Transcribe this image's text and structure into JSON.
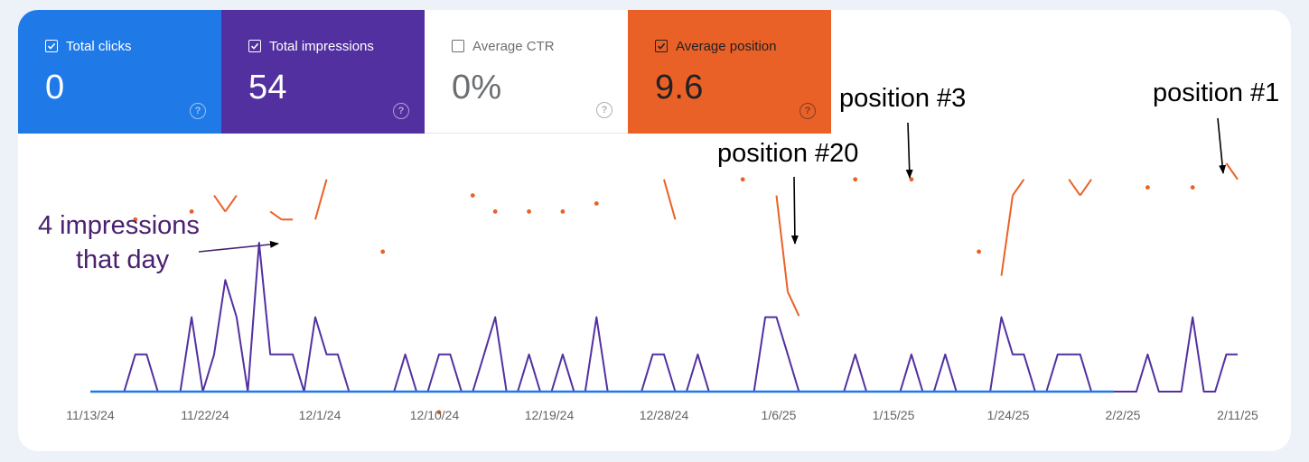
{
  "metrics": [
    {
      "label": "Total clicks",
      "value": "0",
      "checked": true,
      "bg": "#1f7ae8",
      "fg": "#ffffff"
    },
    {
      "label": "Total impressions",
      "value": "54",
      "checked": true,
      "bg": "#5330a0",
      "fg": "#ffffff"
    },
    {
      "label": "Average CTR",
      "value": "0%",
      "checked": false,
      "bg": "#ffffff",
      "fg": "#6b6e73"
    },
    {
      "label": "Average position",
      "value": "9.6",
      "checked": true,
      "bg": "#ea6127",
      "fg": "#202124"
    }
  ],
  "help_glyph": "?",
  "annotations": {
    "impressions": [
      "4 impressions",
      "that day"
    ],
    "pos20": "position #20",
    "pos3": "position #3",
    "pos1": "position #1"
  },
  "chart_data": {
    "type": "line",
    "x_tick_labels": [
      "11/13/24",
      "11/22/24",
      "12/1/24",
      "12/10/24",
      "12/19/24",
      "12/28/24",
      "1/6/25",
      "1/15/25",
      "1/24/25",
      "2/2/25",
      "2/11/25"
    ],
    "x_range": [
      "11/13/24",
      "2/11/25"
    ],
    "grid": false,
    "legend": "none",
    "series": [
      {
        "name": "Total clicks",
        "color": "#1f7ae8",
        "values": [
          0,
          0,
          0,
          0,
          0,
          0,
          0,
          0,
          0,
          0,
          0,
          0,
          0,
          0,
          0,
          0,
          0,
          0,
          0,
          0,
          0,
          0,
          0,
          0,
          0,
          0,
          0,
          0,
          0,
          0,
          0,
          0,
          0,
          0,
          0,
          0,
          0,
          0,
          0,
          0,
          0,
          0,
          0,
          0,
          0,
          0,
          0,
          0,
          0,
          0,
          0,
          0,
          0,
          0,
          0,
          0,
          0,
          0,
          0,
          0,
          0,
          0,
          0,
          0,
          0,
          0,
          0,
          0,
          0,
          0,
          0,
          0,
          0,
          0,
          0,
          0,
          0,
          0,
          0,
          0,
          0,
          0,
          0,
          0,
          0,
          0,
          0,
          0,
          0,
          0,
          0,
          0
        ]
      },
      {
        "name": "Total impressions",
        "color": "#5330a0",
        "values": [
          0,
          0,
          0,
          0,
          1,
          1,
          0,
          0,
          0,
          2,
          0,
          1,
          3,
          2,
          0,
          4,
          1,
          1,
          1,
          0,
          2,
          1,
          1,
          0,
          0,
          0,
          0,
          0,
          1,
          0,
          0,
          1,
          1,
          0,
          0,
          1,
          2,
          0,
          0,
          1,
          0,
          0,
          1,
          0,
          0,
          2,
          0,
          0,
          0,
          0,
          1,
          1,
          0,
          0,
          1,
          0,
          0,
          0,
          0,
          0,
          2,
          2,
          1,
          0,
          0,
          0,
          0,
          0,
          1,
          0,
          0,
          0,
          0,
          1,
          0,
          0,
          1,
          0,
          0,
          0,
          0,
          2,
          1,
          1,
          0,
          0,
          1,
          1,
          1,
          0,
          0,
          0,
          0,
          0,
          1,
          0,
          0,
          0,
          2,
          0,
          0,
          1,
          1
        ]
      },
      {
        "name": "Average position",
        "color": "#ea6127",
        "values": [
          null,
          null,
          null,
          null,
          8,
          null,
          null,
          null,
          null,
          7,
          null,
          5,
          7,
          5,
          null,
          null,
          7,
          8,
          8,
          null,
          8,
          3,
          null,
          null,
          null,
          null,
          12,
          null,
          null,
          null,
          null,
          32,
          null,
          null,
          5,
          null,
          7,
          null,
          null,
          7,
          null,
          null,
          7,
          null,
          null,
          6,
          null,
          null,
          null,
          null,
          null,
          3,
          8,
          null,
          null,
          null,
          null,
          null,
          3,
          null,
          null,
          5,
          17,
          20,
          null,
          null,
          null,
          null,
          3,
          null,
          null,
          null,
          null,
          3,
          null,
          null,
          null,
          null,
          null,
          12,
          null,
          15,
          5,
          3,
          null,
          null,
          null,
          3,
          5,
          3,
          null,
          null,
          null,
          null,
          4,
          null,
          null,
          null,
          4,
          null,
          null,
          1,
          3
        ]
      }
    ]
  }
}
